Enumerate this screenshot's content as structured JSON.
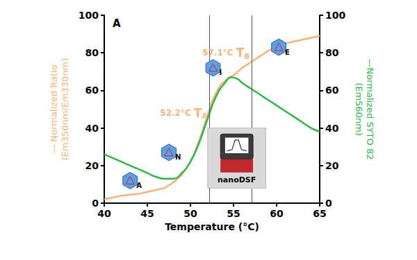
{
  "chart_data": {
    "type": "line",
    "panel_label": "A",
    "xlabel": "Temperature (°C)",
    "ylabel": [
      "— Normalized Ratio",
      "(Em350nm/Em330nm)"
    ],
    "y2label": [
      "—Normalized SYTO 82",
      "(Em560nm)"
    ],
    "xlim": [
      40,
      65
    ],
    "xticks": [
      40,
      45,
      50,
      55,
      60,
      65
    ],
    "ylim": [
      0,
      100
    ],
    "yticks": [
      0,
      20,
      40,
      60,
      80,
      100
    ],
    "y2lim": [
      0,
      100
    ],
    "y2ticks": [
      0,
      20,
      40,
      60,
      80,
      100
    ],
    "grid": false,
    "series": [
      {
        "name": "Normalized Ratio",
        "color": "#f5b47a",
        "marker": "none",
        "line_style": "solid",
        "x": [
          40,
          42,
          44,
          46,
          47,
          48,
          49,
          50,
          50.5,
          51,
          51.5,
          52,
          52.5,
          53,
          53.5,
          54,
          54.5,
          55,
          56,
          57,
          58,
          59,
          60,
          61,
          62,
          63,
          64,
          65
        ],
        "values": [
          2,
          4,
          5,
          7,
          8,
          11,
          15,
          22,
          27,
          33,
          40,
          47,
          54,
          59,
          63,
          65,
          67,
          68,
          72,
          75,
          78,
          81,
          83,
          85,
          86,
          87,
          88,
          89
        ]
      },
      {
        "name": "Normalized SYTO 82",
        "color": "#2db84a",
        "marker": "none",
        "line_style": "solid",
        "axis": "y2",
        "x": [
          40,
          41,
          42,
          43,
          44,
          45,
          46,
          47,
          48,
          49,
          50,
          51,
          52,
          53,
          54,
          54.8,
          55.5,
          56,
          57,
          58,
          59,
          60,
          61,
          62,
          63,
          64,
          65
        ],
        "values": [
          26,
          24,
          22,
          20,
          18,
          16,
          14,
          13,
          13,
          16,
          22,
          32,
          45,
          57,
          64,
          67,
          66,
          64,
          61,
          58,
          55,
          52,
          49,
          46,
          43,
          40,
          38
        ]
      }
    ],
    "annotations": [
      {
        "text": "52.2°C",
        "symbol": "T",
        "subscript": "A",
        "x": 52.2
      },
      {
        "text": "57.1°C",
        "symbol": "T",
        "subscript": "B",
        "x": 57.1
      }
    ],
    "states": [
      "A",
      "N",
      "I",
      "E"
    ],
    "inset_label": "nanoDSF"
  }
}
